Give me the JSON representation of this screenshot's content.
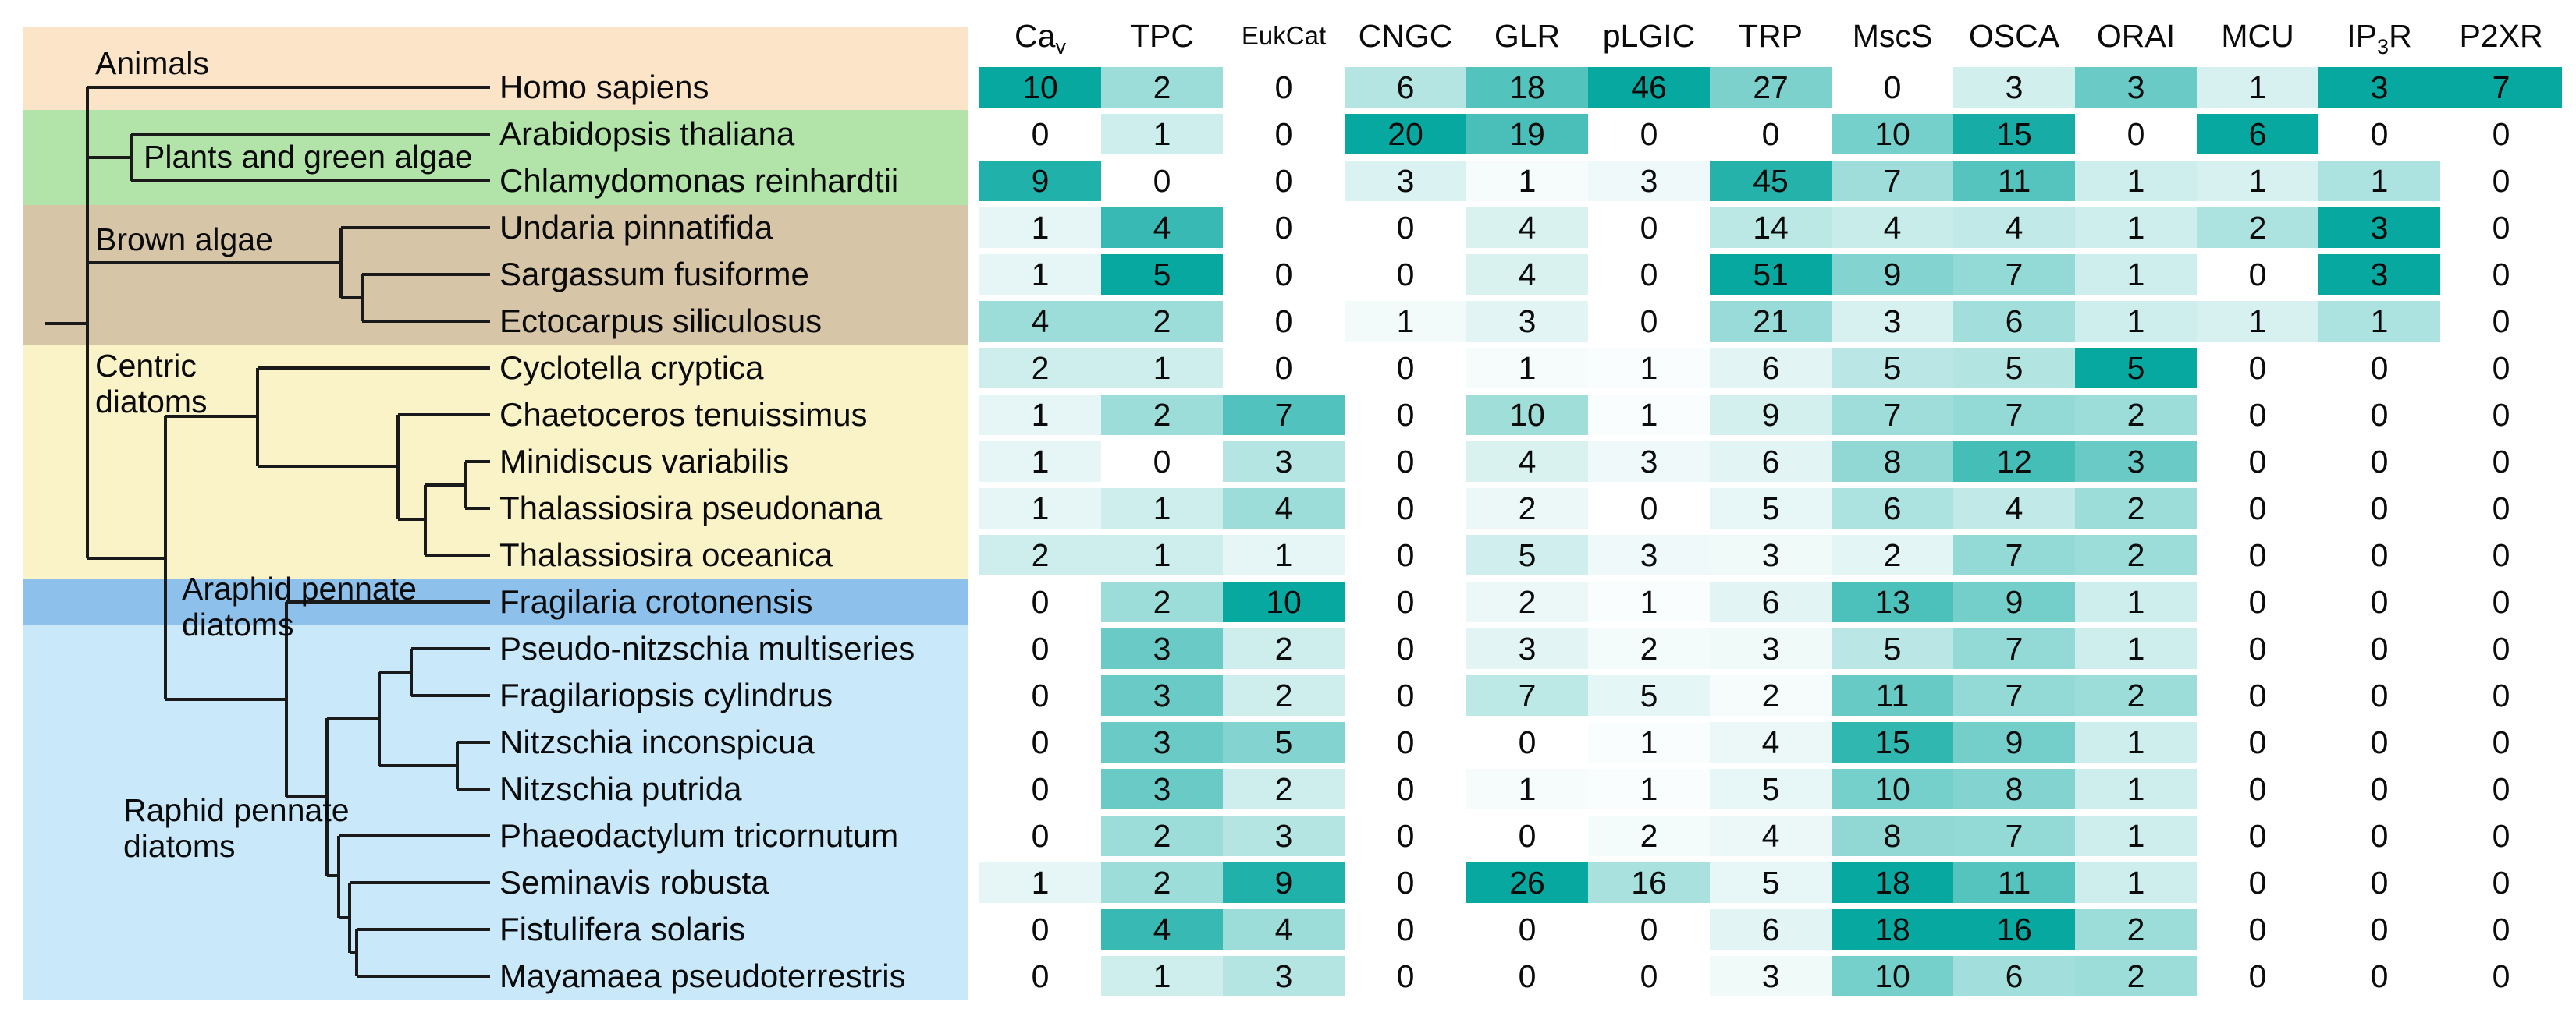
{
  "chart_data": {
    "type": "heatmap",
    "legend_position": "none",
    "layout_hint": "phylogenetic tree with colored clade bands on left, per-column-normalized white-to-teal heatmap on right",
    "heat_color_max": "#07a8a0",
    "heat_color_min": "#ffffff",
    "columns": [
      {
        "label": "Ca",
        "subscript": "v",
        "suffix": ""
      },
      {
        "label": "TPC"
      },
      {
        "label": "EukCat",
        "small": true
      },
      {
        "label": "CNGC"
      },
      {
        "label": "GLR"
      },
      {
        "label": "pLGIC"
      },
      {
        "label": "TRP"
      },
      {
        "label": "MscS"
      },
      {
        "label": "OSCA"
      },
      {
        "label": "ORAI"
      },
      {
        "label": "MCU"
      },
      {
        "label": "IP",
        "subscript": "3",
        "suffix": "R"
      },
      {
        "label": "P2XR"
      }
    ],
    "column_max": [
      10,
      5,
      10,
      20,
      26,
      46,
      51,
      18,
      16,
      5,
      6,
      3,
      7
    ],
    "rows": [
      {
        "species": "Homo sapiens",
        "group": "Animals",
        "values": [
          10,
          2,
          0,
          6,
          18,
          46,
          27,
          0,
          3,
          3,
          1,
          3,
          7
        ]
      },
      {
        "species": "Arabidopsis thaliana",
        "group": "Plants and green algae",
        "values": [
          0,
          1,
          0,
          20,
          19,
          0,
          0,
          10,
          15,
          0,
          6,
          0,
          0
        ]
      },
      {
        "species": "Chlamydomonas reinhardtii",
        "group": "Plants and green algae",
        "values": [
          9,
          0,
          0,
          3,
          1,
          3,
          45,
          7,
          11,
          1,
          1,
          1,
          0
        ]
      },
      {
        "species": "Undaria pinnatifida",
        "group": "Brown algae",
        "values": [
          1,
          4,
          0,
          0,
          4,
          0,
          14,
          4,
          4,
          1,
          2,
          3,
          0
        ]
      },
      {
        "species": "Sargassum fusiforme",
        "group": "Brown algae",
        "values": [
          1,
          5,
          0,
          0,
          4,
          0,
          51,
          9,
          7,
          1,
          0,
          3,
          0
        ]
      },
      {
        "species": "Ectocarpus siliculosus",
        "group": "Brown algae",
        "values": [
          4,
          2,
          0,
          1,
          3,
          0,
          21,
          3,
          6,
          1,
          1,
          1,
          0
        ]
      },
      {
        "species": "Cyclotella cryptica",
        "group": "Centric diatoms",
        "values": [
          2,
          1,
          0,
          0,
          1,
          1,
          6,
          5,
          5,
          5,
          0,
          0,
          0
        ]
      },
      {
        "species": "Chaetoceros tenuissimus",
        "group": "Centric diatoms",
        "values": [
          1,
          2,
          7,
          0,
          10,
          1,
          9,
          7,
          7,
          2,
          0,
          0,
          0
        ]
      },
      {
        "species": "Minidiscus variabilis",
        "group": "Centric diatoms",
        "values": [
          1,
          0,
          3,
          0,
          4,
          3,
          6,
          8,
          12,
          3,
          0,
          0,
          0
        ]
      },
      {
        "species": "Thalassiosira pseudonana",
        "group": "Centric diatoms",
        "values": [
          1,
          1,
          4,
          0,
          2,
          0,
          5,
          6,
          4,
          2,
          0,
          0,
          0
        ]
      },
      {
        "species": "Thalassiosira oceanica",
        "group": "Centric diatoms",
        "values": [
          2,
          1,
          1,
          0,
          5,
          3,
          3,
          2,
          7,
          2,
          0,
          0,
          0
        ]
      },
      {
        "species": "Fragilaria crotonensis",
        "group": "Araphid pennate diatoms",
        "values": [
          0,
          2,
          10,
          0,
          2,
          1,
          6,
          13,
          9,
          1,
          0,
          0,
          0
        ]
      },
      {
        "species": "Pseudo-nitzschia multiseries",
        "group": "Raphid pennate diatoms",
        "values": [
          0,
          3,
          2,
          0,
          3,
          2,
          3,
          5,
          7,
          1,
          0,
          0,
          0
        ]
      },
      {
        "species": "Fragilariopsis cylindrus",
        "group": "Raphid pennate diatoms",
        "values": [
          0,
          3,
          2,
          0,
          7,
          5,
          2,
          11,
          7,
          2,
          0,
          0,
          0
        ]
      },
      {
        "species": "Nitzschia inconspicua",
        "group": "Raphid pennate diatoms",
        "values": [
          0,
          3,
          5,
          0,
          0,
          1,
          4,
          15,
          9,
          1,
          0,
          0,
          0
        ]
      },
      {
        "species": "Nitzschia putrida",
        "group": "Raphid pennate diatoms",
        "values": [
          0,
          3,
          2,
          0,
          1,
          1,
          5,
          10,
          8,
          1,
          0,
          0,
          0
        ]
      },
      {
        "species": "Phaeodactylum tricornutum",
        "group": "Raphid pennate diatoms",
        "values": [
          0,
          2,
          3,
          0,
          0,
          2,
          4,
          8,
          7,
          1,
          0,
          0,
          0
        ]
      },
      {
        "species": "Seminavis robusta",
        "group": "Raphid pennate diatoms",
        "values": [
          1,
          2,
          9,
          0,
          26,
          16,
          5,
          18,
          11,
          1,
          0,
          0,
          0
        ]
      },
      {
        "species": "Fistulifera solaris",
        "group": "Raphid pennate diatoms",
        "values": [
          0,
          4,
          4,
          0,
          0,
          0,
          6,
          18,
          16,
          2,
          0,
          0,
          0
        ]
      },
      {
        "species": "Mayamaea pseudoterrestris",
        "group": "Raphid pennate diatoms",
        "values": [
          0,
          1,
          3,
          0,
          0,
          0,
          3,
          10,
          6,
          2,
          0,
          0,
          0
        ]
      }
    ],
    "groups": [
      {
        "label": "Animals",
        "label_lines": [
          "Animals"
        ],
        "color": "#fbe4c8",
        "row_start": 0,
        "row_end": 0
      },
      {
        "label": "Plants and green algae",
        "label_lines": [
          "Plants and green algae"
        ],
        "color": "#b2e4aa",
        "row_start": 1,
        "row_end": 2
      },
      {
        "label": "Brown algae",
        "label_lines": [
          "Brown algae"
        ],
        "color": "#d7c5a8",
        "row_start": 3,
        "row_end": 5
      },
      {
        "label": "Centric diatoms",
        "label_lines": [
          "Centric",
          "diatoms"
        ],
        "color": "#faf3c8",
        "row_start": 6,
        "row_end": 10
      },
      {
        "label": "Araphid pennate diatoms",
        "label_lines": [
          "Araphid pennate",
          "diatoms"
        ],
        "color": "#8dc1eb",
        "row_start": 11,
        "row_end": 11
      },
      {
        "label": "Raphid pennate diatoms",
        "label_lines": [
          "Raphid pennate",
          "diatoms"
        ],
        "color": "#c9e9fa",
        "row_start": 12,
        "row_end": 19
      }
    ],
    "tree_topology_newick": "(Homo sapiens,((Arabidopsis thaliana,Chlamydomonas reinhardtii),((Undaria pinnatifida,(Sargassum fusiforme,Ectocarpus siliculosus)),((Cyclotella cryptica,(Chaetoceros tenuissimus,((Minidiscus variabilis,Thalassiosira pseudonana),Thalassiosira oceanica))),(Fragilaria crotonensis,(((Pseudo-nitzschia multiseries,Fragilariopsis cylindrus),(Nitzschia inconspicua,Nitzschia putrida)),(Phaeodactylum tricornutum,(Seminavis robusta,(Fistulifera solaris,Mayamaea pseudoterrestris))))))));"
  }
}
